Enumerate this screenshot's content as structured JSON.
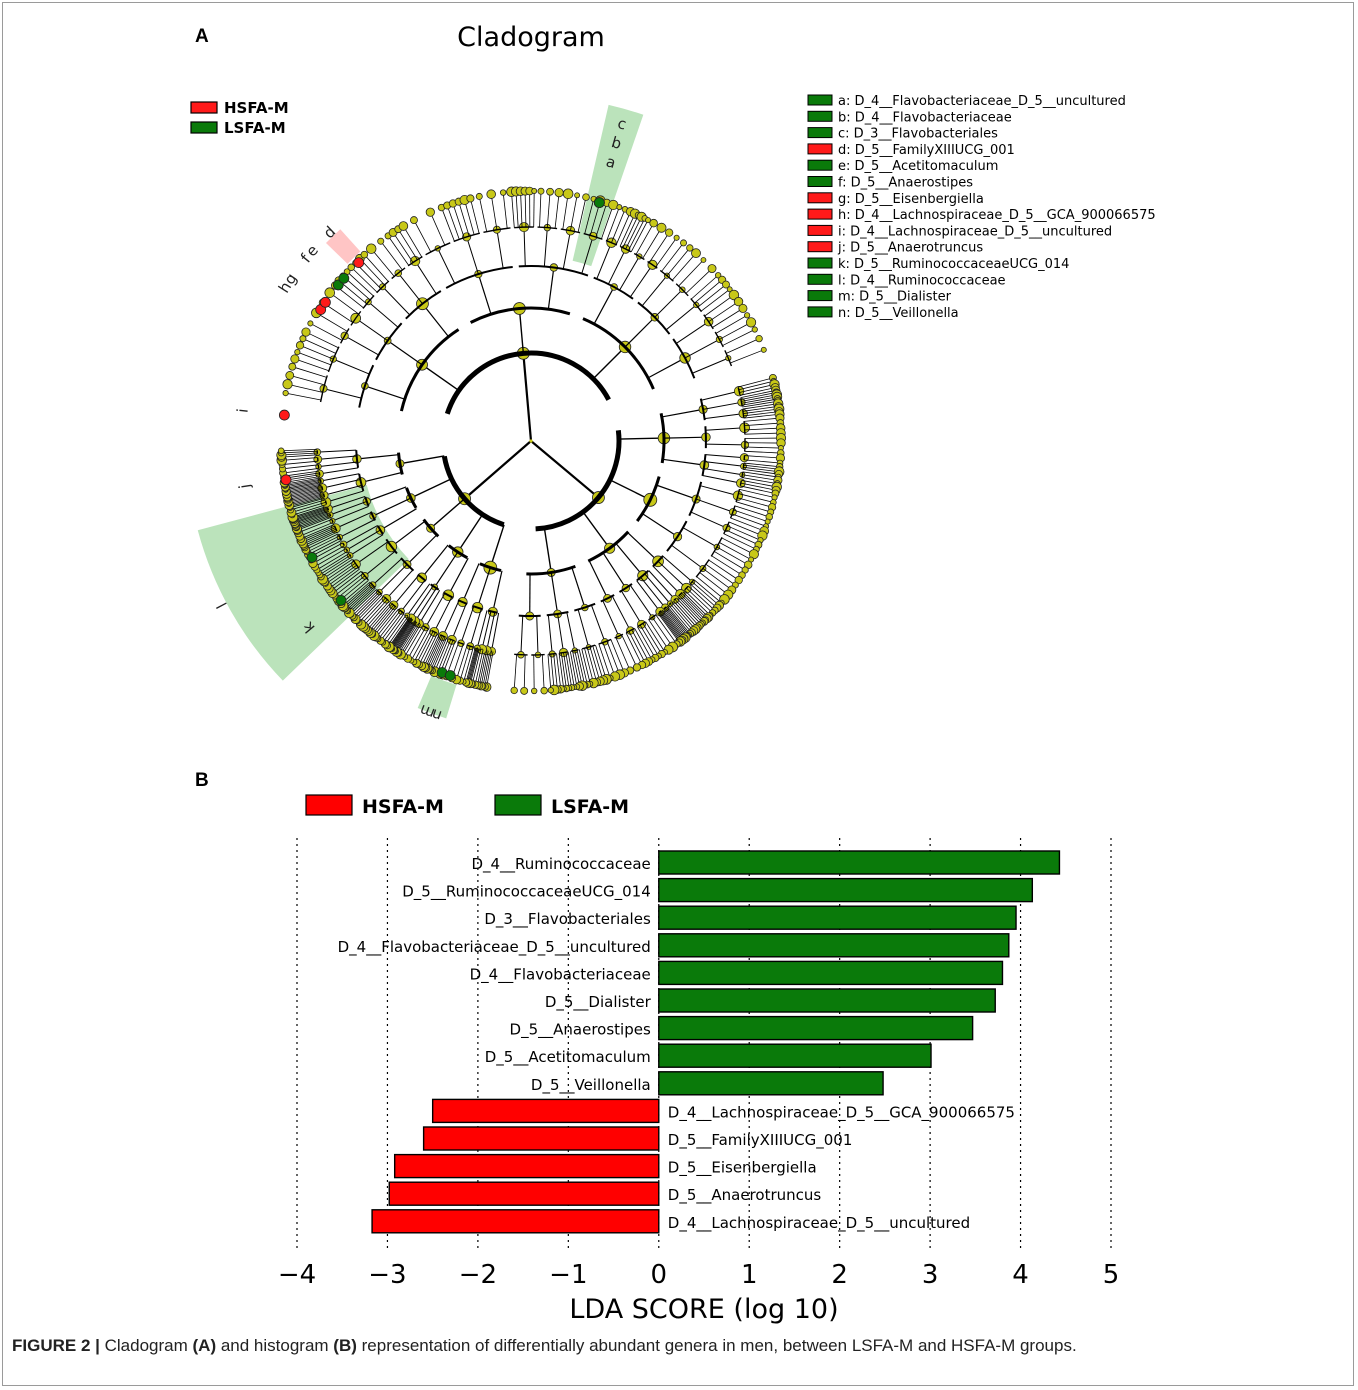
{
  "panel_a": {
    "label": "A",
    "title": "Cladogram",
    "legend_groups": [
      {
        "name": "HSFA-M",
        "color": "#ff1a1a"
      },
      {
        "name": "LSFA-M",
        "color": "#0a7a0a"
      }
    ],
    "key": [
      {
        "letter": "a",
        "label": "a: D_4__Flavobacteriaceae_D_5__uncultured",
        "group": "LSFA-M"
      },
      {
        "letter": "b",
        "label": "b: D_4__Flavobacteriaceae",
        "group": "LSFA-M"
      },
      {
        "letter": "c",
        "label": "c: D_3__Flavobacteriales",
        "group": "LSFA-M"
      },
      {
        "letter": "d",
        "label": "d: D_5__FamilyXIIIUCG_001",
        "group": "HSFA-M"
      },
      {
        "letter": "e",
        "label": "e: D_5__Acetitomaculum",
        "group": "LSFA-M"
      },
      {
        "letter": "f",
        "label": "f: D_5__Anaerostipes",
        "group": "LSFA-M"
      },
      {
        "letter": "g",
        "label": "g: D_5__Eisenbergiella",
        "group": "HSFA-M"
      },
      {
        "letter": "h",
        "label": "h: D_4__Lachnospiraceae_D_5__GCA_900066575",
        "group": "HSFA-M"
      },
      {
        "letter": "i",
        "label": "i: D_4__Lachnospiraceae_D_5__uncultured",
        "group": "HSFA-M"
      },
      {
        "letter": "j",
        "label": "j: D_5__Anaerotruncus",
        "group": "HSFA-M"
      },
      {
        "letter": "k",
        "label": "k: D_5__RuminococcaceaeUCG_014",
        "group": "LSFA-M"
      },
      {
        "letter": "l",
        "label": "l: D_4__Ruminococcaceae",
        "group": "LSFA-M"
      },
      {
        "letter": "m",
        "label": "m: D_5__Dialister",
        "group": "LSFA-M"
      },
      {
        "letter": "n",
        "label": "n: D_5__Veillonella",
        "group": "LSFA-M"
      }
    ],
    "node_color": "#c8c818",
    "highlights": [
      {
        "letter": "c",
        "angle": -74,
        "group": "LSFA-M"
      },
      {
        "letter": "b",
        "angle": -74,
        "group": "LSFA-M"
      },
      {
        "letter": "a",
        "angle": -74,
        "group": "LSFA-M"
      },
      {
        "letter": "d",
        "angle": -134,
        "group": "HSFA-M"
      },
      {
        "letter": "f",
        "angle": -141,
        "group": "LSFA-M"
      },
      {
        "letter": "e",
        "angle": -139,
        "group": "LSFA-M"
      },
      {
        "letter": "h",
        "angle": -148,
        "group": "HSFA-M"
      },
      {
        "letter": "g",
        "angle": -146,
        "group": "HSFA-M"
      },
      {
        "letter": "i",
        "angle": -174,
        "group": "HSFA-M"
      },
      {
        "letter": "j",
        "angle": 171,
        "group": "HSFA-M"
      },
      {
        "letter": "l",
        "angle": 152,
        "group": "LSFA-M"
      },
      {
        "letter": "k",
        "angle": 140,
        "group": "LSFA-M"
      },
      {
        "letter": "m",
        "angle": 111,
        "group": "LSFA-M"
      },
      {
        "letter": "n",
        "angle": 109,
        "group": "LSFA-M"
      }
    ]
  },
  "chart_data": {
    "type": "bar",
    "orientation": "horizontal",
    "panel_label": "B",
    "xlabel": "LDA SCORE (log 10)",
    "xlim": [
      -4,
      5
    ],
    "xticks": [
      "−4",
      "−3",
      "−2",
      "−1",
      "0",
      "1",
      "2",
      "3",
      "4",
      "5"
    ],
    "grid": "vertical dotted",
    "legend": [
      {
        "name": "HSFA-M",
        "color": "#ff0000"
      },
      {
        "name": "LSFA-M",
        "color": "#0a7a0a"
      }
    ],
    "legend_position": "top",
    "categories": [
      "D_4__Ruminococcaceae",
      "D_5__RuminococcaceaeUCG_014",
      "D_3__Flavobacteriales",
      "D_4__Flavobacteriaceae_D_5__uncultured",
      "D_4__Flavobacteriaceae",
      "D_5__Dialister",
      "D_5__Anaerostipes",
      "D_5__Acetitomaculum",
      "D_5__Veillonella",
      "D_4__Lachnospiraceae_D_5__GCA_900066575",
      "D_5__FamilyXIIIUCG_001",
      "D_5__Eisenbergiella",
      "D_5__Anaerotruncus",
      "D_4__Lachnospiraceae_D_5__uncultured"
    ],
    "values": [
      4.43,
      4.13,
      3.95,
      3.87,
      3.8,
      3.72,
      3.47,
      3.01,
      2.48,
      -2.5,
      -2.6,
      -2.92,
      -2.98,
      -3.17
    ],
    "groups": [
      "LSFA-M",
      "LSFA-M",
      "LSFA-M",
      "LSFA-M",
      "LSFA-M",
      "LSFA-M",
      "LSFA-M",
      "LSFA-M",
      "LSFA-M",
      "HSFA-M",
      "HSFA-M",
      "HSFA-M",
      "HSFA-M",
      "HSFA-M"
    ]
  },
  "caption": {
    "lead": "FIGURE 2 |",
    "part1": " Cladogram ",
    "a": "(A)",
    "part2": " and histogram ",
    "b": "(B)",
    "part3": " representation of differentially abundant genera in men, between LSFA-M and HSFA-M groups."
  }
}
